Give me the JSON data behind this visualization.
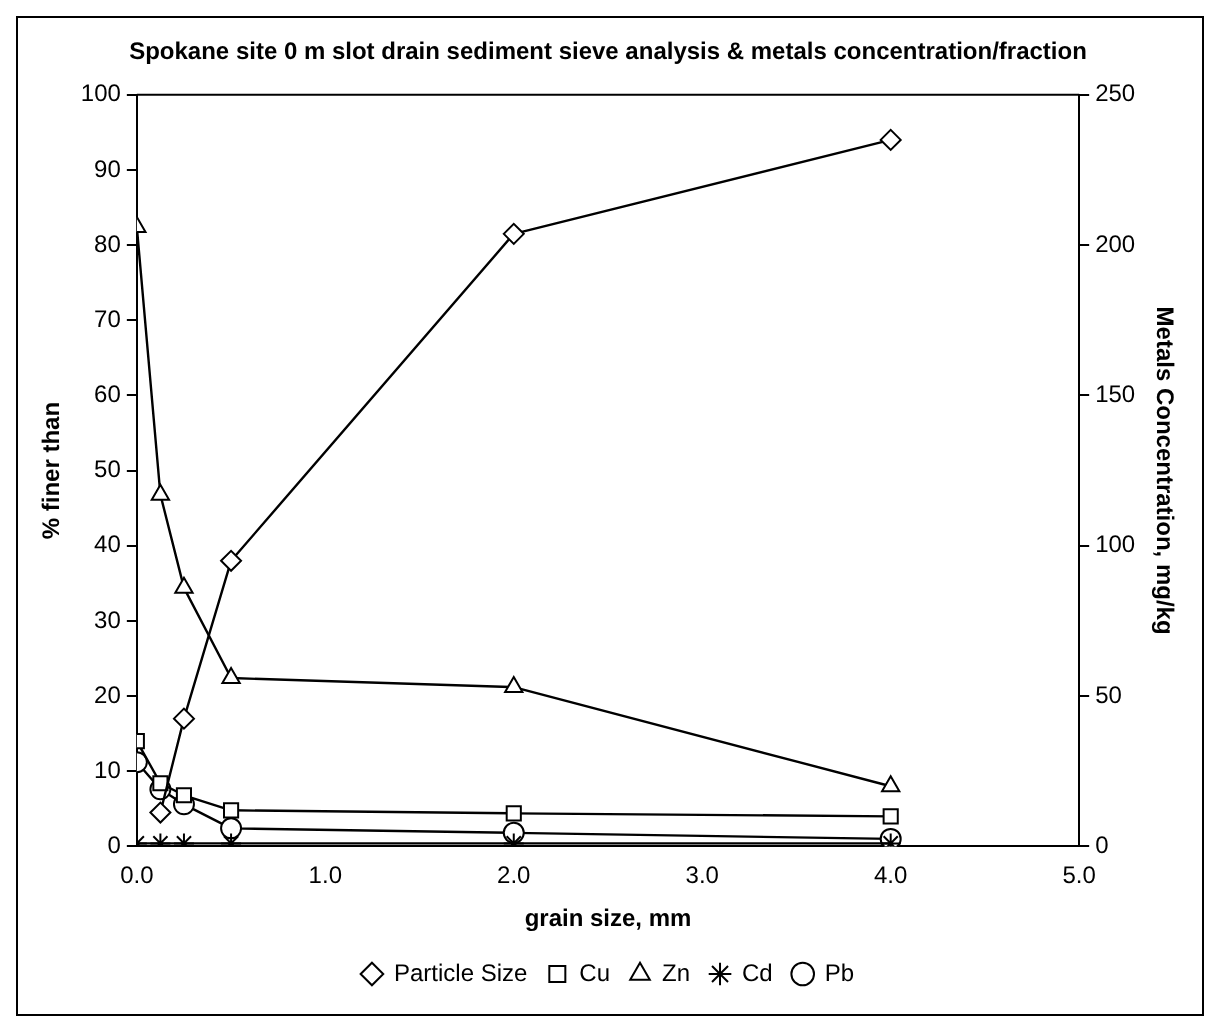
{
  "chart_data": {
    "type": "line",
    "title": "Spokane site 0 m slot drain sediment sieve analysis & metals concentration/fraction",
    "xlabel": "grain size, mm",
    "ylabel": "% finer than",
    "y2label": "Metals Concentration, mg/kg",
    "xlim": [
      0,
      5
    ],
    "xticks": [
      {
        "value": 0,
        "label": "0.0"
      },
      {
        "value": 1,
        "label": "1.0"
      },
      {
        "value": 2,
        "label": "2.0"
      },
      {
        "value": 3,
        "label": "3.0"
      },
      {
        "value": 4,
        "label": "4.0"
      },
      {
        "value": 5,
        "label": "5.0"
      }
    ],
    "ylim": [
      0,
      100
    ],
    "yticks": [
      0,
      10,
      20,
      30,
      40,
      50,
      60,
      70,
      80,
      90,
      100
    ],
    "y2lim": [
      0,
      250
    ],
    "y2ticks": [
      0,
      50,
      100,
      150,
      200,
      250
    ],
    "grid": false,
    "legend": "bottom",
    "line_style": "solid",
    "series": [
      {
        "name": "Particle Size",
        "color": "#000000",
        "marker": "diamond",
        "x": [
          0.125,
          0.25,
          0.5,
          2,
          4
        ],
        "values": [
          4.5,
          17,
          38,
          81.5,
          94
        ]
      },
      {
        "name": "Cu",
        "color": "#000000",
        "marker": "square",
        "axis": "y2",
        "x": [
          0,
          0.125,
          0.25,
          0.5,
          2,
          4
        ],
        "values": [
          35,
          21,
          17,
          12,
          11,
          10
        ]
      },
      {
        "name": "Zn",
        "color": "#000000",
        "marker": "triangle",
        "axis": "y2",
        "x": [
          0,
          0.125,
          0.25,
          0.5,
          2,
          4
        ],
        "values": [
          206,
          117,
          86,
          56,
          53,
          20
        ]
      },
      {
        "name": "Cd",
        "color": "#000000",
        "marker": "cross",
        "axis": "y2",
        "x": [
          0,
          0.125,
          0.25,
          0.5,
          2,
          4
        ],
        "values": [
          1,
          1,
          1,
          1,
          1,
          1
        ]
      },
      {
        "name": "Pb",
        "color": "#000000",
        "marker": "circle",
        "axis": "y2",
        "x": [
          0,
          0.125,
          0.25,
          0.5,
          2,
          4
        ],
        "values": [
          28,
          19,
          14,
          6,
          4.5,
          2.5
        ]
      }
    ]
  }
}
